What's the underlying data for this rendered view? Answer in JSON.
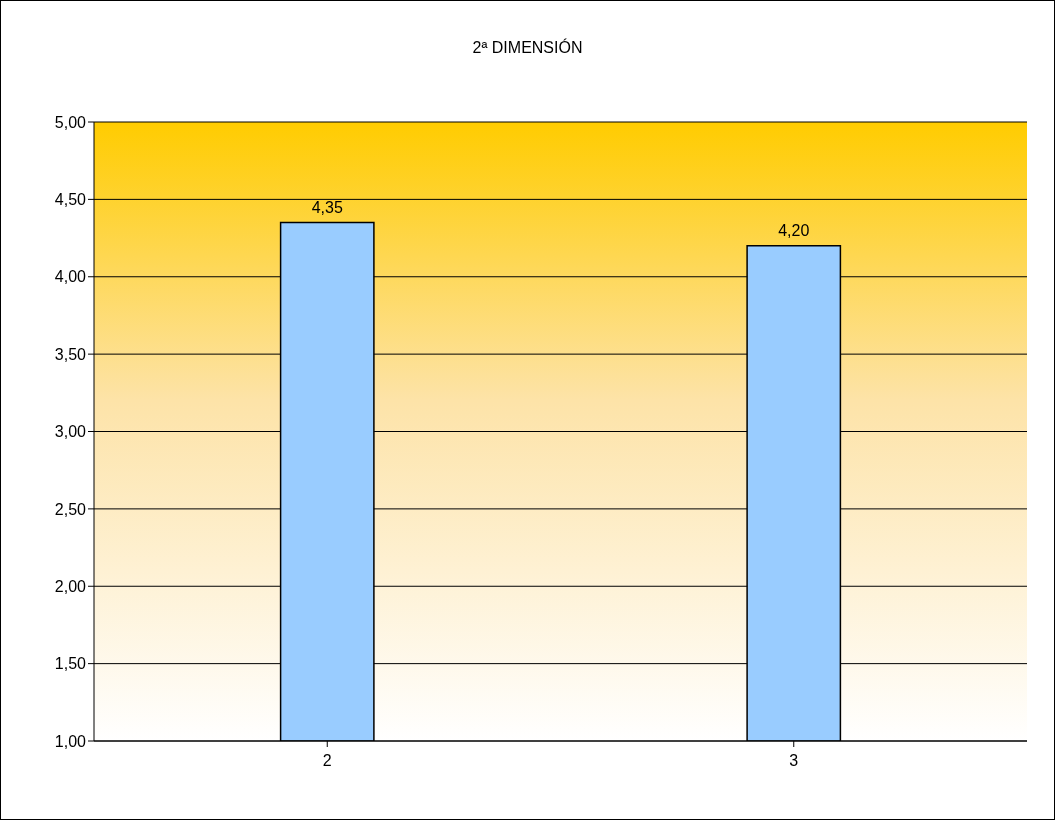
{
  "chart_data": {
    "type": "bar",
    "title": "2ª DIMENSIÓN",
    "categories": [
      "2",
      "3"
    ],
    "values": [
      4.35,
      4.2
    ],
    "color": "#99ccff",
    "value_labels": [
      "4,35",
      "4,20"
    ],
    "ylim": [
      1,
      5
    ],
    "yticks": [
      {
        "value": 1,
        "label": "1,00"
      },
      {
        "value": 1.5,
        "label": "1,50"
      },
      {
        "value": 2,
        "label": "2,00"
      },
      {
        "value": 2.5,
        "label": "2,50"
      },
      {
        "value": 3,
        "label": "3,00"
      },
      {
        "value": 3.5,
        "label": "3,50"
      },
      {
        "value": 4,
        "label": "4,00"
      },
      {
        "value": 4.5,
        "label": "4,50"
      },
      {
        "value": 5,
        "label": "5,00"
      }
    ],
    "grid": "y"
  }
}
